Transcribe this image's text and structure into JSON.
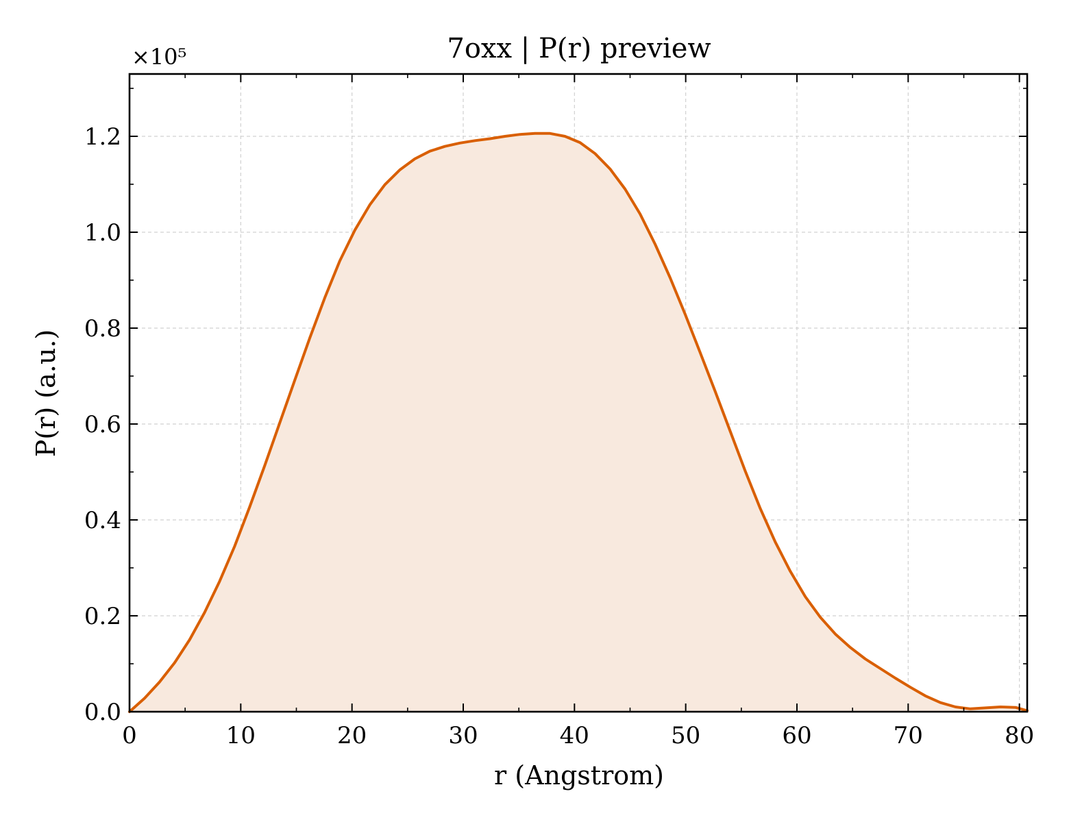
{
  "chart_data": {
    "type": "area",
    "title": "7oxx | P(r) preview",
    "xlabel": "r (Angstrom)",
    "ylabel": "P(r) (a.u.)",
    "y_multiplier_label": "×10⁵",
    "xlim": [
      0,
      80.7
    ],
    "ylim": [
      0,
      1.33
    ],
    "xticks": [
      0,
      10,
      20,
      30,
      40,
      50,
      60,
      70,
      80
    ],
    "xtick_labels": [
      "0",
      "10",
      "20",
      "30",
      "40",
      "50",
      "60",
      "70",
      "80"
    ],
    "yticks": [
      0,
      0.2,
      0.4,
      0.6,
      0.8,
      1.0,
      1.2
    ],
    "ytick_labels": [
      "0.0",
      "0.2",
      "0.4",
      "0.6",
      "0.8",
      "1.0",
      "1.2"
    ],
    "grid": true,
    "line_color": "#d95f02",
    "fill_color": "#f8e9de",
    "x": [
      0,
      1.35,
      2.7,
      4.05,
      5.4,
      6.75,
      8.1,
      9.45,
      10.8,
      12.15,
      13.5,
      14.85,
      16.2,
      17.55,
      18.9,
      20.25,
      21.6,
      22.95,
      24.3,
      25.65,
      27.0,
      28.35,
      29.7,
      31.05,
      32.4,
      33.75,
      35.1,
      36.45,
      37.8,
      39.15,
      40.5,
      41.85,
      43.2,
      44.55,
      45.9,
      47.25,
      48.6,
      49.95,
      51.3,
      52.65,
      54.0,
      55.35,
      56.7,
      58.05,
      59.4,
      60.75,
      62.1,
      63.45,
      64.8,
      66.15,
      67.5,
      68.85,
      70.2,
      71.55,
      72.9,
      74.25,
      75.6,
      76.95,
      78.3,
      79.65,
      80.7
    ],
    "y": [
      0.0,
      0.028,
      0.062,
      0.102,
      0.15,
      0.207,
      0.272,
      0.345,
      0.427,
      0.513,
      0.602,
      0.691,
      0.779,
      0.863,
      0.94,
      1.004,
      1.057,
      1.099,
      1.13,
      1.153,
      1.169,
      1.179,
      1.186,
      1.191,
      1.195,
      1.2,
      1.204,
      1.206,
      1.206,
      1.2,
      1.187,
      1.164,
      1.132,
      1.09,
      1.038,
      0.975,
      0.905,
      0.829,
      0.749,
      0.668,
      0.585,
      0.502,
      0.424,
      0.354,
      0.293,
      0.24,
      0.197,
      0.162,
      0.134,
      0.11,
      0.09,
      0.07,
      0.051,
      0.033,
      0.019,
      0.01,
      0.006,
      0.008,
      0.01,
      0.009,
      0.002
    ]
  }
}
